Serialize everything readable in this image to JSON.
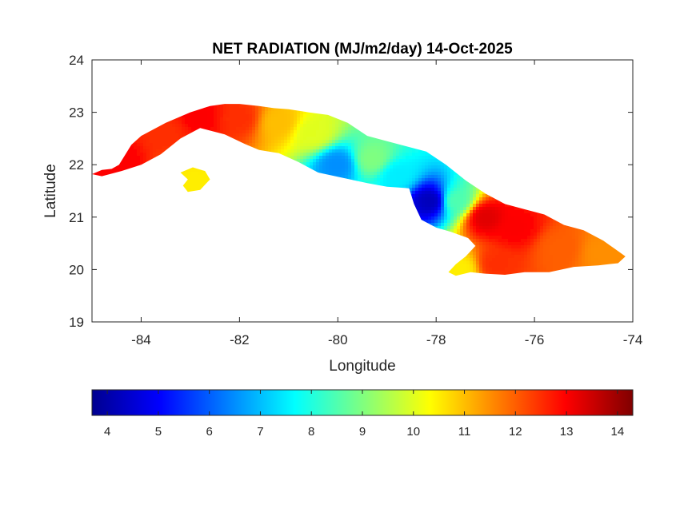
{
  "chart_data": {
    "type": "heatmap",
    "title": "NET RADIATION (MJ/m2/day) 14-Oct-2025",
    "xlabel": "Longitude",
    "ylabel": "Latitude",
    "xlim": [
      -85,
      -74
    ],
    "ylim": [
      19,
      24
    ],
    "xticks": [
      -84,
      -82,
      -80,
      -78,
      -76,
      -74
    ],
    "yticks": [
      19,
      20,
      21,
      22,
      23,
      24
    ],
    "xtick_labels": [
      "-84",
      "-82",
      "-80",
      "-78",
      "-76",
      "-74"
    ],
    "ytick_labels": [
      "19",
      "20",
      "21",
      "22",
      "23",
      "24"
    ],
    "grid": false,
    "colormap": "jet",
    "colorbar": {
      "placement": "bottom",
      "clim": [
        3.7,
        14.3
      ],
      "ticks": [
        4,
        5,
        6,
        7,
        8,
        9,
        10,
        11,
        12,
        13,
        14
      ],
      "tick_labels": [
        "4",
        "5",
        "6",
        "7",
        "8",
        "9",
        "10",
        "11",
        "12",
        "13",
        "14"
      ]
    },
    "regions": [
      {
        "name": "Cuba main island",
        "outline": [
          [
            -85.0,
            21.82
          ],
          [
            -84.8,
            21.9
          ],
          [
            -84.6,
            21.92
          ],
          [
            -84.45,
            22.0
          ],
          [
            -84.2,
            22.38
          ],
          [
            -84.0,
            22.55
          ],
          [
            -83.5,
            22.8
          ],
          [
            -83.0,
            23.0
          ],
          [
            -82.6,
            23.12
          ],
          [
            -82.3,
            23.16
          ],
          [
            -82.0,
            23.16
          ],
          [
            -81.6,
            23.12
          ],
          [
            -81.3,
            23.08
          ],
          [
            -81.0,
            23.06
          ],
          [
            -80.6,
            23.0
          ],
          [
            -80.2,
            22.95
          ],
          [
            -79.8,
            22.8
          ],
          [
            -79.4,
            22.55
          ],
          [
            -79.0,
            22.45
          ],
          [
            -78.6,
            22.35
          ],
          [
            -78.2,
            22.25
          ],
          [
            -77.8,
            22.0
          ],
          [
            -77.4,
            21.7
          ],
          [
            -77.0,
            21.45
          ],
          [
            -76.6,
            21.25
          ],
          [
            -76.2,
            21.15
          ],
          [
            -75.8,
            21.05
          ],
          [
            -75.4,
            20.85
          ],
          [
            -75.0,
            20.75
          ],
          [
            -74.6,
            20.55
          ],
          [
            -74.3,
            20.35
          ],
          [
            -74.15,
            20.25
          ],
          [
            -74.3,
            20.12
          ],
          [
            -74.7,
            20.08
          ],
          [
            -75.2,
            20.05
          ],
          [
            -75.7,
            19.95
          ],
          [
            -76.2,
            19.95
          ],
          [
            -76.6,
            19.9
          ],
          [
            -77.0,
            19.92
          ],
          [
            -77.3,
            19.95
          ],
          [
            -77.6,
            19.88
          ],
          [
            -77.75,
            19.95
          ],
          [
            -77.6,
            20.1
          ],
          [
            -77.4,
            20.25
          ],
          [
            -77.2,
            20.45
          ],
          [
            -77.35,
            20.6
          ],
          [
            -77.7,
            20.72
          ],
          [
            -78.0,
            20.8
          ],
          [
            -78.3,
            20.95
          ],
          [
            -78.45,
            21.25
          ],
          [
            -78.55,
            21.55
          ],
          [
            -79.0,
            21.58
          ],
          [
            -79.4,
            21.65
          ],
          [
            -79.9,
            21.75
          ],
          [
            -80.4,
            21.85
          ],
          [
            -80.8,
            22.05
          ],
          [
            -81.2,
            22.22
          ],
          [
            -81.6,
            22.28
          ],
          [
            -81.9,
            22.4
          ],
          [
            -82.3,
            22.58
          ],
          [
            -82.8,
            22.7
          ],
          [
            -83.2,
            22.5
          ],
          [
            -83.6,
            22.2
          ],
          [
            -84.0,
            22.0
          ],
          [
            -84.4,
            21.88
          ],
          [
            -84.8,
            21.78
          ]
        ]
      },
      {
        "name": "Isla de la Juventud",
        "outline": [
          [
            -83.2,
            21.85
          ],
          [
            -82.95,
            21.95
          ],
          [
            -82.7,
            21.88
          ],
          [
            -82.6,
            21.72
          ],
          [
            -82.8,
            21.52
          ],
          [
            -83.05,
            21.48
          ],
          [
            -83.15,
            21.6
          ],
          [
            -83.05,
            21.72
          ]
        ]
      }
    ],
    "field": [
      {
        "lon": -84.5,
        "lat": 22.1,
        "value": 13.0
      },
      {
        "lon": -83.5,
        "lat": 22.6,
        "value": 12.5
      },
      {
        "lon": -82.8,
        "lat": 22.9,
        "value": 13.0
      },
      {
        "lon": -82.0,
        "lat": 22.9,
        "value": 12.5
      },
      {
        "lon": -81.2,
        "lat": 22.8,
        "value": 11.0
      },
      {
        "lon": -80.5,
        "lat": 22.6,
        "value": 10.0
      },
      {
        "lon": -80.0,
        "lat": 22.0,
        "value": 6.5
      },
      {
        "lon": -79.3,
        "lat": 22.1,
        "value": 9.0
      },
      {
        "lon": -78.8,
        "lat": 21.8,
        "value": 7.5
      },
      {
        "lon": -78.1,
        "lat": 21.3,
        "value": 4.3
      },
      {
        "lon": -77.6,
        "lat": 21.3,
        "value": 8.5
      },
      {
        "lon": -77.0,
        "lat": 21.0,
        "value": 13.3
      },
      {
        "lon": -76.4,
        "lat": 20.8,
        "value": 13.0
      },
      {
        "lon": -75.5,
        "lat": 20.4,
        "value": 12.0
      },
      {
        "lon": -74.6,
        "lat": 20.3,
        "value": 11.5
      },
      {
        "lon": -76.8,
        "lat": 20.1,
        "value": 12.5
      },
      {
        "lon": -77.5,
        "lat": 20.0,
        "value": 10.5
      },
      {
        "lon": -82.9,
        "lat": 21.7,
        "value": 10.5
      }
    ]
  }
}
